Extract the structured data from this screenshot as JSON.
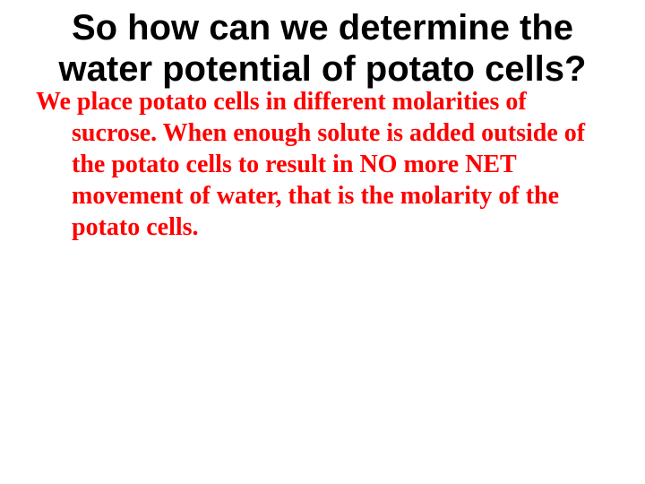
{
  "slide": {
    "title": "So how can we determine the water potential of potato cells?",
    "body": "We place potato cells in different molarities of sucrose.  When enough solute is added outside of the potato cells to result in NO more NET movement of water, that is the molarity of the potato cells.",
    "title_color": "#000000",
    "body_color": "#ff0000",
    "background_color": "#ffffff",
    "title_font_family": "Arial, Helvetica, sans-serif",
    "body_font_family": "Georgia, 'Times New Roman', serif",
    "title_fontsize": 40,
    "body_fontsize": 28,
    "title_fontweight": "bold",
    "body_fontweight": "bold"
  }
}
